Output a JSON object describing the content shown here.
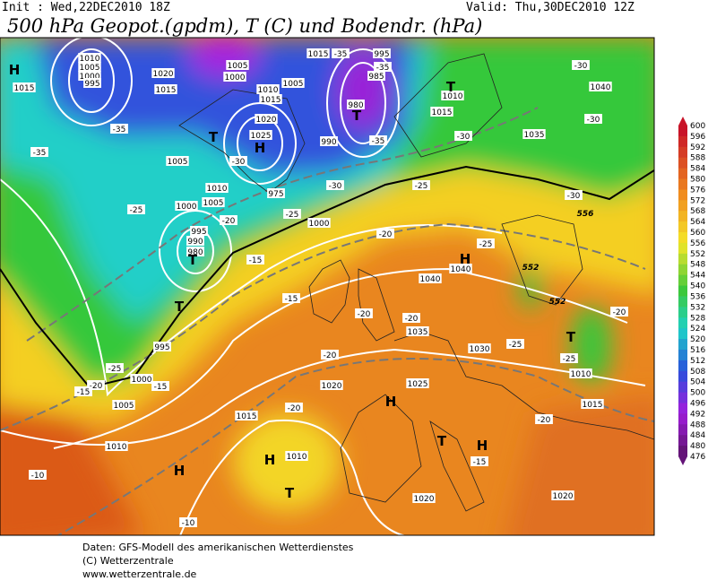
{
  "header": {
    "init": "Init : Wed,22DEC2010 18Z",
    "valid": "Valid: Thu,30DEC2010 12Z",
    "title": "500 hPa Geopot.(gpdm), T (C) und Bodendr. (hPa)"
  },
  "legend": {
    "levels": [
      600,
      596,
      592,
      588,
      584,
      580,
      576,
      572,
      568,
      564,
      560,
      556,
      552,
      548,
      544,
      540,
      536,
      532,
      528,
      524,
      520,
      516,
      512,
      508,
      504,
      500,
      496,
      492,
      488,
      484,
      480,
      476
    ]
  },
  "map": {
    "pressure_labels": [
      "1010",
      "1005",
      "1000",
      "995",
      "1020",
      "1015",
      "1015",
      "1005",
      "1000",
      "1010",
      "1015",
      "1005",
      "1020",
      "1025",
      "1015",
      "995",
      "985",
      "980",
      "990",
      "1010",
      "1015",
      "1035",
      "1040",
      "1005",
      "1010",
      "1005",
      "1000",
      "975",
      "1000",
      "995",
      "990",
      "980",
      "1040",
      "1040",
      "1035",
      "1030",
      "1010",
      "1015",
      "995",
      "1000",
      "1005",
      "1020",
      "1025",
      "1015",
      "1010",
      "1010",
      "1020",
      "1020"
    ],
    "temperature_labels": [
      "-35",
      "-35",
      "-35",
      "-35",
      "-35",
      "-30",
      "-30",
      "-30",
      "-30",
      "-30",
      "-30",
      "-25",
      "-25",
      "-25",
      "-20",
      "-20",
      "-25",
      "-20",
      "-15",
      "-15",
      "-20",
      "-20",
      "-25",
      "-20",
      "-25",
      "-25",
      "-20",
      "-15",
      "-15",
      "-20",
      "-20",
      "-15",
      "-10",
      "-10"
    ],
    "contour_labels": [
      "556",
      "552",
      "552"
    ],
    "centers": [
      "H",
      "T",
      "H",
      "T",
      "T",
      "T",
      "T",
      "H",
      "H",
      "T",
      "H",
      "H",
      "H",
      "T",
      "T"
    ]
  },
  "footer": {
    "lines": [
      "Daten: GFS-Modell des amerikanischen Wetterdienstes",
      "(C) Wetterzentrale",
      "www.wetterzentrale.de"
    ]
  }
}
